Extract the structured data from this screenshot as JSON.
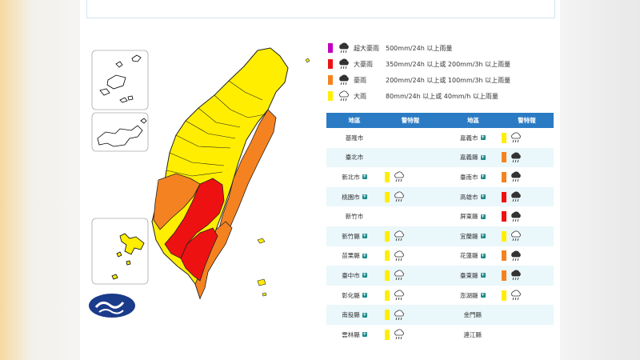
{
  "legend": [
    {
      "name": "超大豪雨",
      "desc": "500mm/24h 以上雨量",
      "color": "#c000c0",
      "icon": "heavy-rain-cloud-icon"
    },
    {
      "name": "大豪雨",
      "desc": "350mm/24h 以上或 200mm/3h 以上雨量",
      "color": "#ee1111",
      "icon": "heavy-rain-cloud-icon"
    },
    {
      "name": "豪雨",
      "desc": "200mm/24h 以上或 100mm/3h 以上雨量",
      "color": "#f58220",
      "icon": "heavy-rain-cloud-icon"
    },
    {
      "name": "大雨",
      "desc": "80mm/24h 以上或 40mm/h 以上雨量",
      "color": "#ffee00",
      "icon": "rain-cloud-outline-icon"
    }
  ],
  "table_header": {
    "area": "地區",
    "warning": "警特報"
  },
  "left_table": [
    {
      "area": "基隆市",
      "level": "none",
      "link": false
    },
    {
      "area": "臺北市",
      "level": "none",
      "link": false
    },
    {
      "area": "新北市",
      "level": "大雨",
      "link": true
    },
    {
      "area": "桃園市",
      "level": "大雨",
      "link": true
    },
    {
      "area": "新竹市",
      "level": "none",
      "link": false
    },
    {
      "area": "新竹縣",
      "level": "大雨",
      "link": true
    },
    {
      "area": "苗栗縣",
      "level": "大雨",
      "link": true
    },
    {
      "area": "臺中市",
      "level": "大雨",
      "link": true
    },
    {
      "area": "彰化縣",
      "level": "大雨",
      "link": true
    },
    {
      "area": "南投縣",
      "level": "大雨",
      "link": true
    },
    {
      "area": "雲林縣",
      "level": "大雨",
      "link": true
    }
  ],
  "right_table": [
    {
      "area": "嘉義市",
      "level": "大雨",
      "link": true
    },
    {
      "area": "嘉義縣",
      "level": "豪雨",
      "link": true
    },
    {
      "area": "臺南市",
      "level": "豪雨",
      "link": true
    },
    {
      "area": "高雄市",
      "level": "大豪雨",
      "link": true
    },
    {
      "area": "屏東縣",
      "level": "大豪雨",
      "link": true
    },
    {
      "area": "宜蘭縣",
      "level": "大雨",
      "link": true
    },
    {
      "area": "花蓮縣",
      "level": "豪雨",
      "link": true
    },
    {
      "area": "臺東縣",
      "level": "豪雨",
      "link": true
    },
    {
      "area": "澎湖縣",
      "level": "大雨",
      "link": true
    },
    {
      "area": "金門縣",
      "level": "none",
      "link": false
    },
    {
      "area": "連江縣",
      "level": "none",
      "link": false
    }
  ],
  "colors": {
    "header": "#2b7bc4",
    "plus": "#1e8a8a",
    "yellow": "#ffee00",
    "orange": "#f58220",
    "red": "#ee1111",
    "purple": "#c000c0",
    "logo": "#1a3a8a"
  }
}
